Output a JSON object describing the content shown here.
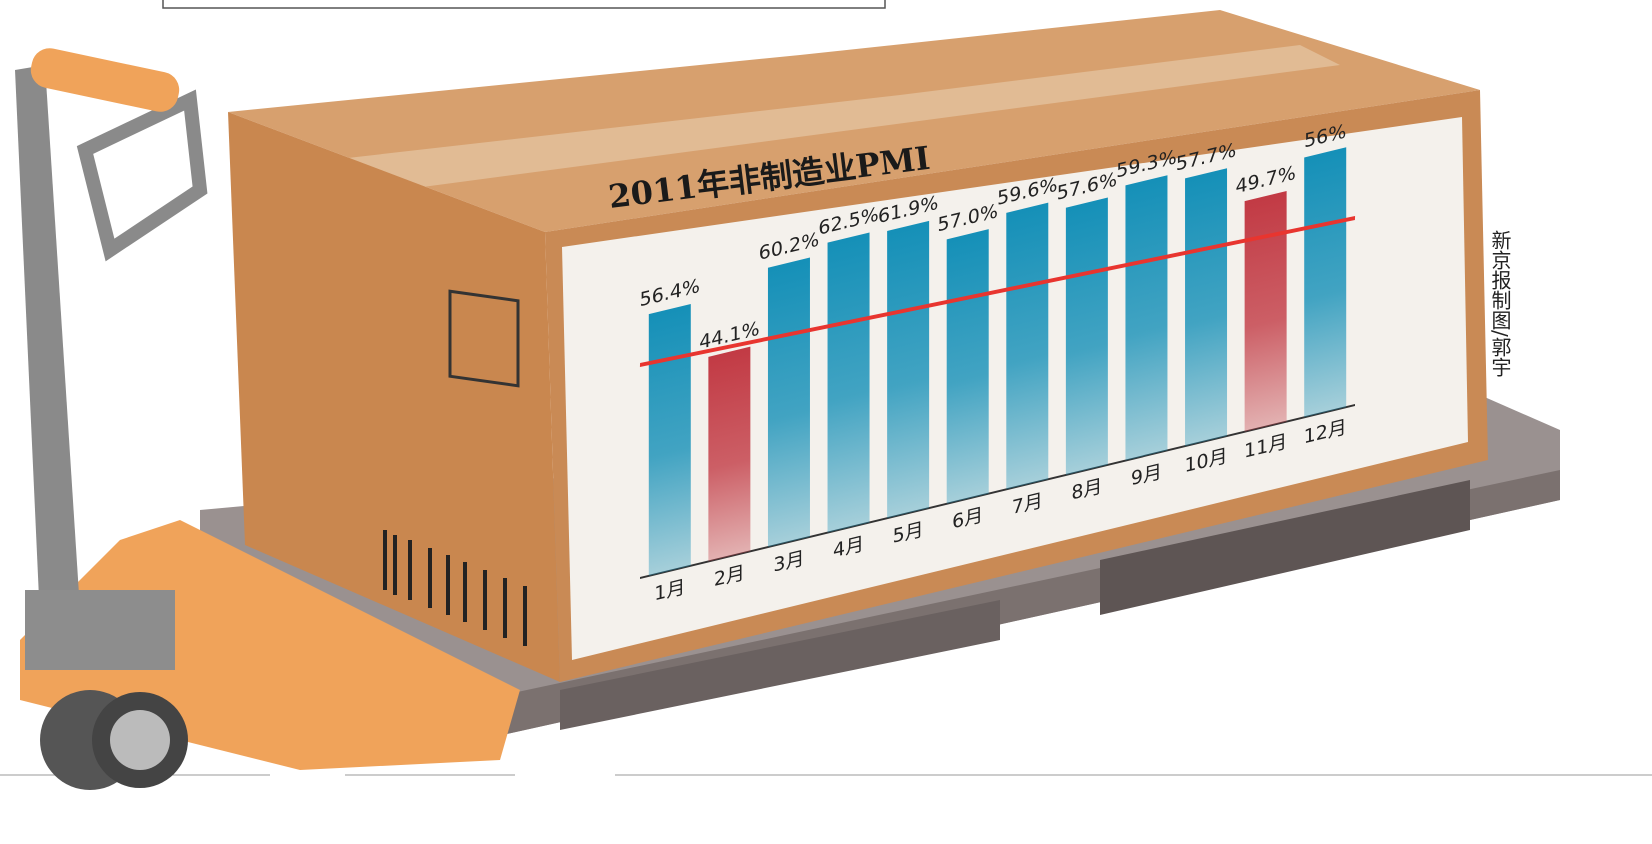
{
  "chart_data": {
    "type": "bar",
    "title": "2011年非制造业PMI",
    "credit": "新京报制图/郭宇",
    "categories": [
      "1月",
      "2月",
      "3月",
      "4月",
      "5月",
      "6月",
      "7月",
      "8月",
      "9月",
      "10月",
      "11月",
      "12月"
    ],
    "values": [
      56.4,
      44.1,
      60.2,
      62.5,
      61.9,
      57.0,
      59.6,
      57.6,
      59.3,
      57.7,
      49.7,
      56
    ],
    "value_labels": [
      "56.4%",
      "44.1%",
      "60.2%",
      "62.5%",
      "61.9%",
      "57.0%",
      "59.6%",
      "57.6%",
      "59.3%",
      "57.7%",
      "49.7%",
      "56%"
    ],
    "colors": [
      "#1590b8",
      "#c23a44",
      "#1590b8",
      "#1590b8",
      "#1590b8",
      "#1590b8",
      "#1590b8",
      "#1590b8",
      "#1590b8",
      "#1590b8",
      "#c23a44",
      "#1590b8"
    ]
  }
}
